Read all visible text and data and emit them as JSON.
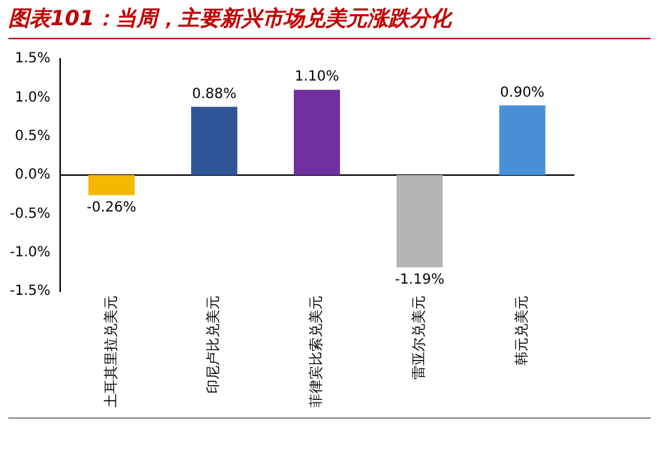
{
  "chart_data": {
    "type": "bar",
    "title": "图表101：当周，主要新兴市场兑美元涨跌分化",
    "categories": [
      "土耳其里拉兑美元",
      "印尼卢比兑美元",
      "菲律宾比索兑美元",
      "雷亚尔兑美元",
      "韩元兑美元"
    ],
    "values": [
      -0.26,
      0.88,
      1.1,
      -1.19,
      0.9
    ],
    "colors": [
      "#f5b800",
      "#2f5597",
      "#7030a0",
      "#b4b4b4",
      "#4a90d9"
    ],
    "value_labels": [
      "-0.26%",
      "0.88%",
      "1.10%",
      "-1.19%",
      "0.90%"
    ],
    "ylim": [
      -1.5,
      1.5
    ],
    "yticks": [
      {
        "value": -1.5,
        "label": "-1.5%"
      },
      {
        "value": -1,
        "label": "-1.0%"
      },
      {
        "value": -0.5,
        "label": "-0.5%"
      },
      {
        "value": 0,
        "label": "0.0%"
      },
      {
        "value": 0.5,
        "label": "0.5%"
      },
      {
        "value": 1,
        "label": "1.0%"
      },
      {
        "value": 1.5,
        "label": "1.5%"
      }
    ],
    "legend": false
  }
}
